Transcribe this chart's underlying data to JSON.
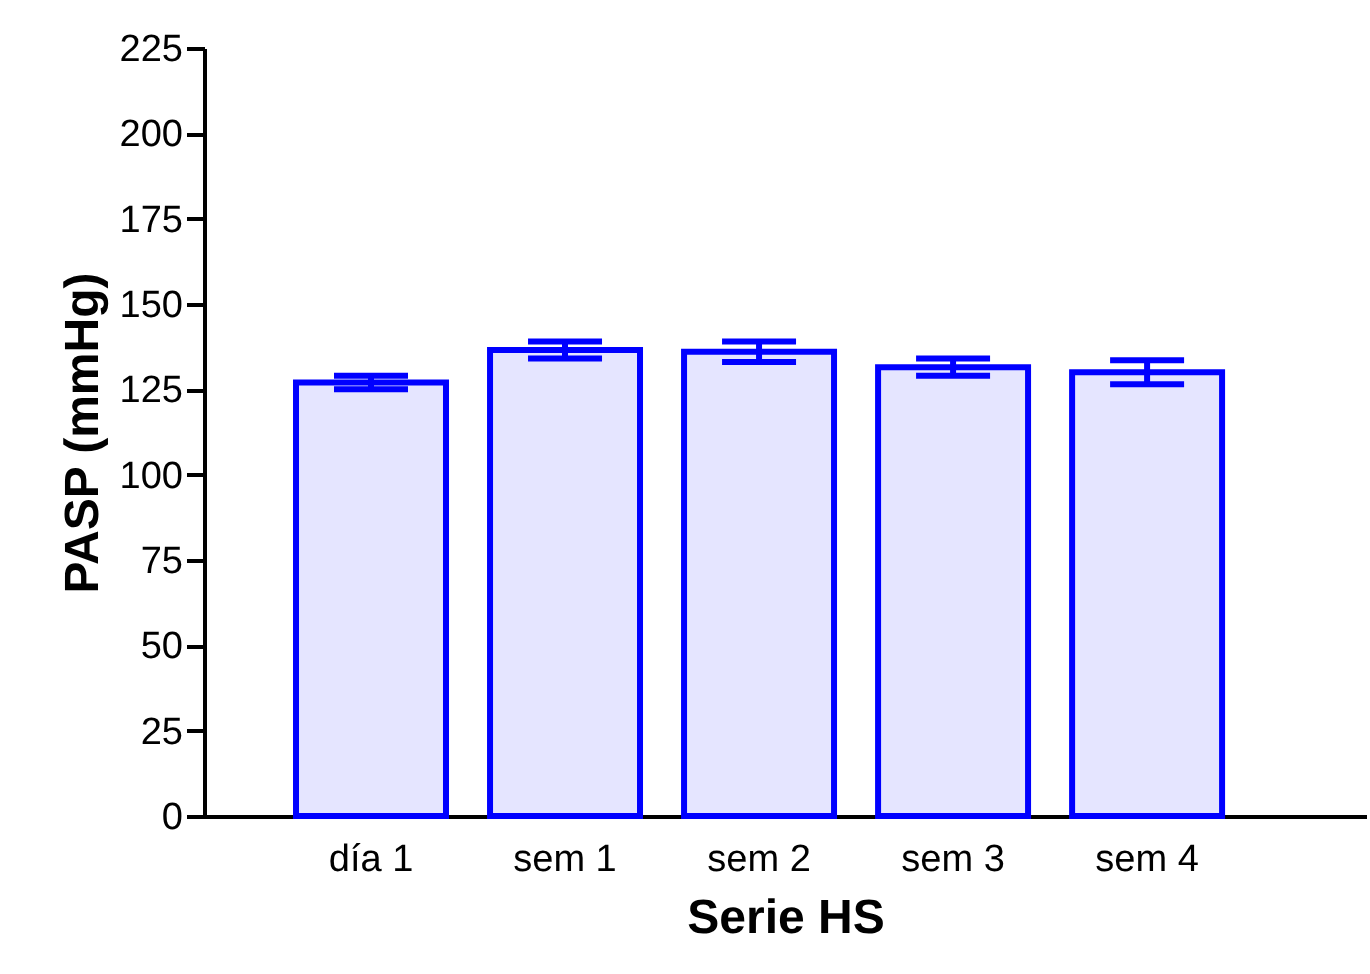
{
  "chart_data": {
    "type": "bar",
    "xlabel": "Serie HS",
    "ylabel": "PASP (mmHg)",
    "categories": [
      "día 1",
      "sem 1",
      "sem 2",
      "sem 3",
      "sem 4"
    ],
    "values": [
      127,
      136.5,
      136,
      131.5,
      130
    ],
    "errors": [
      2,
      2.5,
      3,
      2.5,
      3.5
    ],
    "color": "#0000ff",
    "ylim": [
      0,
      225
    ],
    "yticks": [
      0,
      25,
      50,
      75,
      100,
      125,
      150,
      175,
      200,
      225
    ],
    "grid": false
  }
}
